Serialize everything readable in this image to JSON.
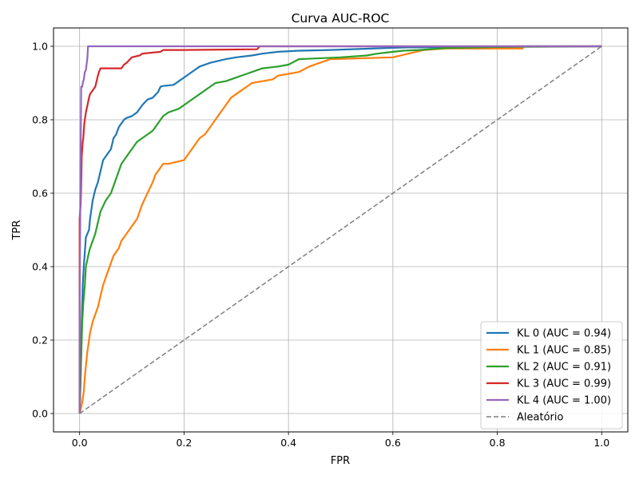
{
  "chart_data": {
    "type": "line",
    "title": "Curva AUC-ROC",
    "xlabel": "FPR",
    "ylabel": "TPR",
    "xlim": [
      -0.05,
      1.05
    ],
    "ylim": [
      -0.05,
      1.05
    ],
    "x_ticks": [
      "0.0",
      "0.2",
      "0.4",
      "0.6",
      "0.8",
      "1.0"
    ],
    "y_ticks": [
      "0.0",
      "0.2",
      "0.4",
      "0.6",
      "0.8",
      "1.0"
    ],
    "grid": true,
    "legend_position": "lower-right",
    "series": [
      {
        "name": "KL 0 (AUC = 0.94)",
        "color": "#1f77b4",
        "x": [
          0,
          0.002,
          0.004,
          0.006,
          0.008,
          0.01,
          0.012,
          0.015,
          0.018,
          0.02,
          0.025,
          0.03,
          0.035,
          0.04,
          0.045,
          0.05,
          0.055,
          0.06,
          0.065,
          0.07,
          0.075,
          0.08,
          0.085,
          0.09,
          0.1,
          0.11,
          0.12,
          0.13,
          0.14,
          0.15,
          0.155,
          0.16,
          0.18,
          0.19,
          0.2,
          0.21,
          0.22,
          0.23,
          0.25,
          0.28,
          0.3,
          0.33,
          0.35,
          0.38,
          0.42,
          0.48,
          0.54,
          0.6,
          0.63,
          0.75,
          0.85,
          1.0
        ],
        "y": [
          0,
          0.1,
          0.25,
          0.35,
          0.4,
          0.44,
          0.48,
          0.49,
          0.5,
          0.53,
          0.58,
          0.61,
          0.63,
          0.66,
          0.69,
          0.7,
          0.71,
          0.72,
          0.75,
          0.76,
          0.78,
          0.79,
          0.8,
          0.805,
          0.81,
          0.82,
          0.84,
          0.855,
          0.86,
          0.875,
          0.89,
          0.892,
          0.895,
          0.905,
          0.915,
          0.925,
          0.935,
          0.945,
          0.955,
          0.965,
          0.97,
          0.975,
          0.98,
          0.985,
          0.988,
          0.99,
          0.993,
          0.996,
          0.997,
          0.998,
          1.0,
          1.0
        ]
      },
      {
        "name": "KL 1 (AUC = 0.85)",
        "color": "#ff7f0e",
        "x": [
          0,
          0.005,
          0.008,
          0.01,
          0.012,
          0.015,
          0.018,
          0.02,
          0.025,
          0.03,
          0.035,
          0.04,
          0.045,
          0.05,
          0.055,
          0.06,
          0.065,
          0.07,
          0.075,
          0.08,
          0.085,
          0.09,
          0.1,
          0.11,
          0.115,
          0.12,
          0.13,
          0.14,
          0.145,
          0.15,
          0.16,
          0.165,
          0.17,
          0.2,
          0.21,
          0.22,
          0.23,
          0.24,
          0.25,
          0.26,
          0.27,
          0.28,
          0.29,
          0.3,
          0.31,
          0.32,
          0.33,
          0.35,
          0.37,
          0.38,
          0.4,
          0.42,
          0.44,
          0.46,
          0.48,
          0.6,
          0.63,
          0.66,
          0.7,
          0.85
        ],
        "y": [
          0,
          0.03,
          0.06,
          0.1,
          0.13,
          0.17,
          0.2,
          0.22,
          0.25,
          0.27,
          0.29,
          0.32,
          0.35,
          0.37,
          0.39,
          0.41,
          0.43,
          0.44,
          0.45,
          0.47,
          0.48,
          0.49,
          0.51,
          0.53,
          0.55,
          0.57,
          0.6,
          0.63,
          0.65,
          0.66,
          0.68,
          0.68,
          0.68,
          0.69,
          0.71,
          0.73,
          0.75,
          0.76,
          0.78,
          0.8,
          0.82,
          0.84,
          0.86,
          0.87,
          0.88,
          0.89,
          0.9,
          0.905,
          0.91,
          0.92,
          0.925,
          0.93,
          0.945,
          0.955,
          0.965,
          0.97,
          0.98,
          0.99,
          0.994,
          0.994
        ]
      },
      {
        "name": "KL 2 (AUC = 0.91)",
        "color": "#2ca02c",
        "x": [
          0,
          0.003,
          0.005,
          0.007,
          0.01,
          0.012,
          0.015,
          0.018,
          0.02,
          0.025,
          0.03,
          0.035,
          0.04,
          0.05,
          0.055,
          0.06,
          0.065,
          0.07,
          0.075,
          0.08,
          0.085,
          0.09,
          0.1,
          0.11,
          0.12,
          0.13,
          0.14,
          0.15,
          0.155,
          0.16,
          0.17,
          0.18,
          0.19,
          0.2,
          0.21,
          0.22,
          0.23,
          0.24,
          0.25,
          0.26,
          0.28,
          0.3,
          0.32,
          0.33,
          0.35,
          0.38,
          0.4,
          0.42,
          0.5,
          0.55,
          0.57,
          0.6,
          0.62,
          0.65,
          0.7,
          0.8,
          1.0
        ],
        "y": [
          0,
          0.15,
          0.25,
          0.3,
          0.35,
          0.4,
          0.42,
          0.44,
          0.45,
          0.47,
          0.49,
          0.52,
          0.55,
          0.58,
          0.59,
          0.6,
          0.62,
          0.64,
          0.66,
          0.68,
          0.69,
          0.7,
          0.72,
          0.74,
          0.75,
          0.76,
          0.77,
          0.79,
          0.8,
          0.81,
          0.82,
          0.825,
          0.83,
          0.84,
          0.85,
          0.86,
          0.87,
          0.88,
          0.89,
          0.9,
          0.905,
          0.915,
          0.925,
          0.93,
          0.94,
          0.945,
          0.95,
          0.965,
          0.97,
          0.975,
          0.98,
          0.985,
          0.988,
          0.99,
          0.995,
          0.998,
          1.0
        ]
      },
      {
        "name": "KL 3 (AUC = 0.99)",
        "color": "#d62728",
        "x": [
          0,
          0.0,
          0.002,
          0.003,
          0.004,
          0.005,
          0.006,
          0.007,
          0.008,
          0.009,
          0.01,
          0.012,
          0.015,
          0.018,
          0.02,
          0.025,
          0.03,
          0.035,
          0.037,
          0.04,
          0.08,
          0.085,
          0.09,
          0.1,
          0.115,
          0.12,
          0.155,
          0.16,
          0.2,
          0.34,
          0.345,
          0.5,
          1.0
        ],
        "y": [
          0,
          0.53,
          0.57,
          0.62,
          0.7,
          0.72,
          0.74,
          0.75,
          0.77,
          0.79,
          0.8,
          0.82,
          0.84,
          0.86,
          0.87,
          0.88,
          0.89,
          0.92,
          0.93,
          0.94,
          0.94,
          0.95,
          0.955,
          0.97,
          0.975,
          0.98,
          0.985,
          0.99,
          0.99,
          0.992,
          1.0,
          1.0,
          1.0
        ]
      },
      {
        "name": "KL 4 (AUC = 1.00)",
        "color": "#9467bd",
        "x": [
          0,
          0.0,
          0.001,
          0.002,
          0.003,
          0.005,
          0.006,
          0.008,
          0.01,
          0.012,
          0.015,
          0.016,
          0.5,
          1.0
        ],
        "y": [
          0,
          0.3,
          0.5,
          0.7,
          0.89,
          0.89,
          0.9,
          0.91,
          0.93,
          0.935,
          0.97,
          1.0,
          1.0,
          1.0
        ]
      },
      {
        "name": "Aleatório",
        "color": "#7f7f7f",
        "dashed": true,
        "x": [
          0,
          1
        ],
        "y": [
          0,
          1
        ]
      }
    ]
  }
}
